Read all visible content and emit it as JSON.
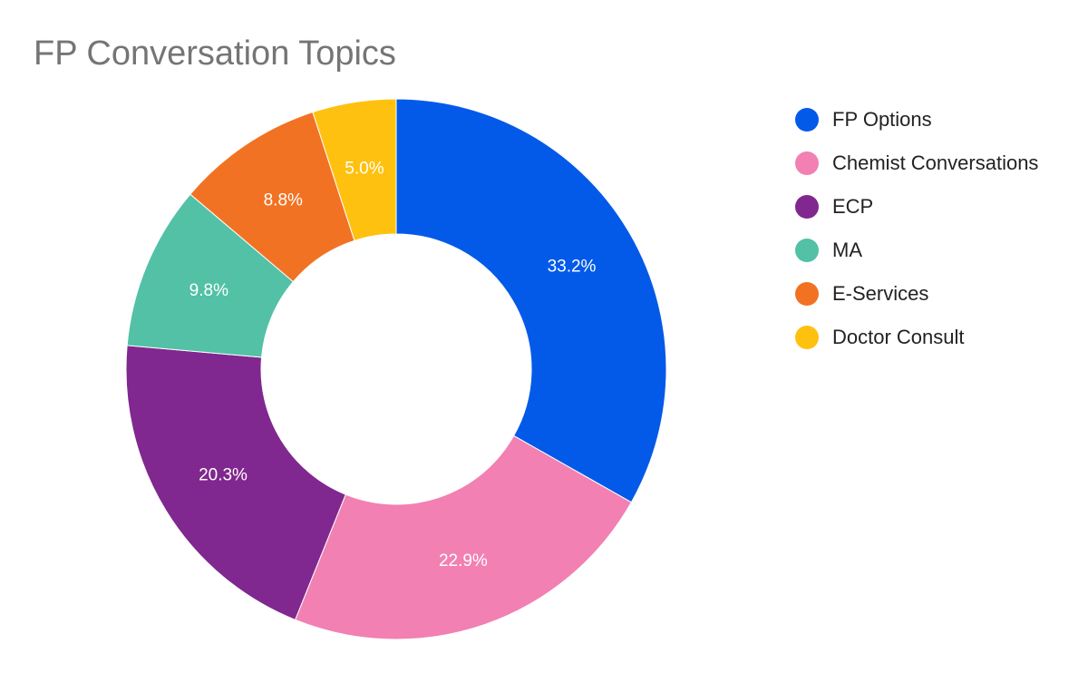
{
  "chart_data": {
    "type": "pie",
    "title": "FP Conversation Topics",
    "donut": true,
    "legend_position": "right",
    "series": [
      {
        "name": "FP Options",
        "value": 33.2,
        "label": "33.2%",
        "color": "#035ae8"
      },
      {
        "name": "Chemist Conversations",
        "value": 22.9,
        "label": "22.9%",
        "color": "#f280b2"
      },
      {
        "name": "ECP",
        "value": 20.3,
        "label": "20.3%",
        "color": "#80288f"
      },
      {
        "name": "MA",
        "value": 9.8,
        "label": "9.8%",
        "color": "#52c1a5"
      },
      {
        "name": "E-Services",
        "value": 8.8,
        "label": "8.8%",
        "color": "#f27224"
      },
      {
        "name": "Doctor Consult",
        "value": 5.0,
        "label": "5.0%",
        "color": "#ffc110"
      }
    ]
  }
}
